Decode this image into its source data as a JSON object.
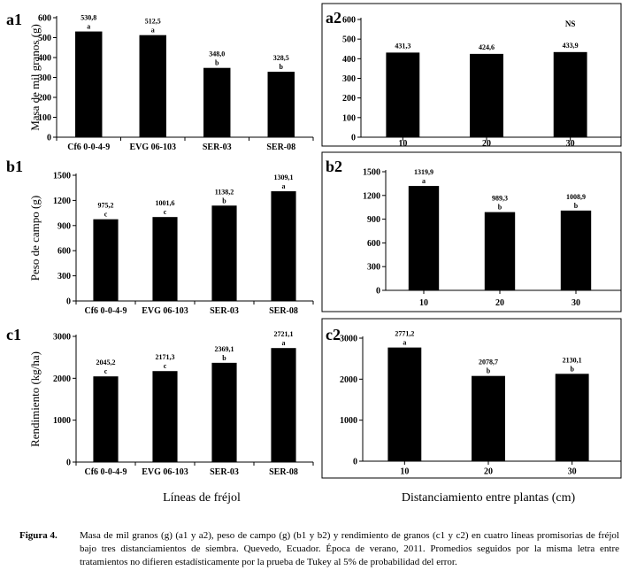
{
  "chart_data": [
    {
      "id": "a1",
      "type": "bar",
      "panel_label": "a1",
      "categories": [
        "Cf6 0-0-4-9",
        "EVG 06-103",
        "SER-03",
        "SER-08"
      ],
      "values": [
        530.8,
        512.5,
        348.0,
        328.5
      ],
      "value_labels": [
        "530,8",
        "512,5",
        "348,0",
        "328,5"
      ],
      "letters": [
        "a",
        "a",
        "b",
        "b"
      ],
      "ylabel": "Masa de mil granos (g)",
      "ylim": [
        0,
        600
      ],
      "yticks": [
        0,
        100,
        200,
        300,
        400,
        500,
        600
      ],
      "ytick_labels": [
        "0",
        "100",
        "200",
        "300",
        "400",
        "500",
        "600"
      ],
      "note": ""
    },
    {
      "id": "a2",
      "type": "bar",
      "panel_label": "a2",
      "categories": [
        "10",
        "20",
        "30"
      ],
      "values": [
        431.3,
        424.6,
        433.9
      ],
      "value_labels": [
        "431,3",
        "424,6",
        "433,9"
      ],
      "letters": [
        "",
        "",
        ""
      ],
      "ylabel": "",
      "ylim": [
        0,
        600
      ],
      "yticks": [
        0,
        100,
        200,
        300,
        400,
        500,
        600
      ],
      "ytick_labels": [
        "0",
        "100",
        "200",
        "300",
        "400",
        "500",
        "600"
      ],
      "note": "NS"
    },
    {
      "id": "b1",
      "type": "bar",
      "panel_label": "b1",
      "categories": [
        "Cf6 0-0-4-9",
        "EVG 06-103",
        "SER-03",
        "SER-08"
      ],
      "values": [
        975.2,
        1001.6,
        1138.2,
        1309.1
      ],
      "value_labels": [
        "975,2",
        "1001,6",
        "1138,2",
        "1309,1"
      ],
      "letters": [
        "c",
        "c",
        "b",
        "a"
      ],
      "ylabel": "Peso de campo (g)",
      "ylim": [
        0,
        1500
      ],
      "yticks": [
        0,
        300,
        600,
        900,
        1200,
        1500
      ],
      "ytick_labels": [
        "0",
        "300",
        "600",
        "900",
        "1200",
        "1500"
      ],
      "note": ""
    },
    {
      "id": "b2",
      "type": "bar",
      "panel_label": "b2",
      "categories": [
        "10",
        "20",
        "30"
      ],
      "values": [
        1319.9,
        989.3,
        1008.9
      ],
      "value_labels": [
        "1319,9",
        "989,3",
        "1008,9"
      ],
      "letters": [
        "a",
        "b",
        "b"
      ],
      "ylabel": "",
      "ylim": [
        0,
        1500
      ],
      "yticks": [
        0,
        300,
        600,
        900,
        1200,
        1500
      ],
      "ytick_labels": [
        "0",
        "300",
        "600",
        "900",
        "1200",
        "1500"
      ],
      "note": ""
    },
    {
      "id": "c1",
      "type": "bar",
      "panel_label": "c1",
      "categories": [
        "Cf6 0-0-4-9",
        "EVG 06-103",
        "SER-03",
        "SER-08"
      ],
      "values": [
        2045.2,
        2171.3,
        2369.1,
        2721.1
      ],
      "value_labels": [
        "2045,2",
        "2171,3",
        "2369,1",
        "2721,1"
      ],
      "letters": [
        "c",
        "c",
        "b",
        "a"
      ],
      "ylabel": "Rendimiento (kg/ha)",
      "ylim": [
        0,
        3000
      ],
      "yticks": [
        0,
        1000,
        2000,
        3000
      ],
      "ytick_labels": [
        "0",
        "1000",
        "2000",
        "3000"
      ],
      "note": ""
    },
    {
      "id": "c2",
      "type": "bar",
      "panel_label": "c2",
      "categories": [
        "10",
        "20",
        "30"
      ],
      "values": [
        2771.2,
        2078.7,
        2130.1
      ],
      "value_labels": [
        "2771,2",
        "2078,7",
        "2130,1"
      ],
      "letters": [
        "a",
        "b",
        "b"
      ],
      "ylabel": "",
      "ylim": [
        0,
        3000
      ],
      "yticks": [
        0,
        1000,
        2000,
        3000
      ],
      "ytick_labels": [
        "0",
        "1000",
        "2000",
        "3000"
      ],
      "note": ""
    }
  ],
  "xtitles": {
    "left": "Líneas de fréjol",
    "right": "Distanciamiento entre plantas (cm)"
  },
  "caption": {
    "label": "Figura 4.",
    "text": "Masa de mil granos (g) (a1 y a2), peso de campo (g) (b1 y b2) y rendimiento de granos (c1 y c2) en cuatro líneas promisorias de fréjol bajo tres distanciamientos de siembra. Quevedo, Ecuador. Época de verano, 2011. Promedios seguidos por la misma letra entre tratamientos no difieren estadísticamente por la prueba de Tukey al 5% de probabilidad del error."
  },
  "colors": {
    "bar": "#000000",
    "axis": "#000000",
    "frame": "#000000",
    "background": "#ffffff"
  }
}
